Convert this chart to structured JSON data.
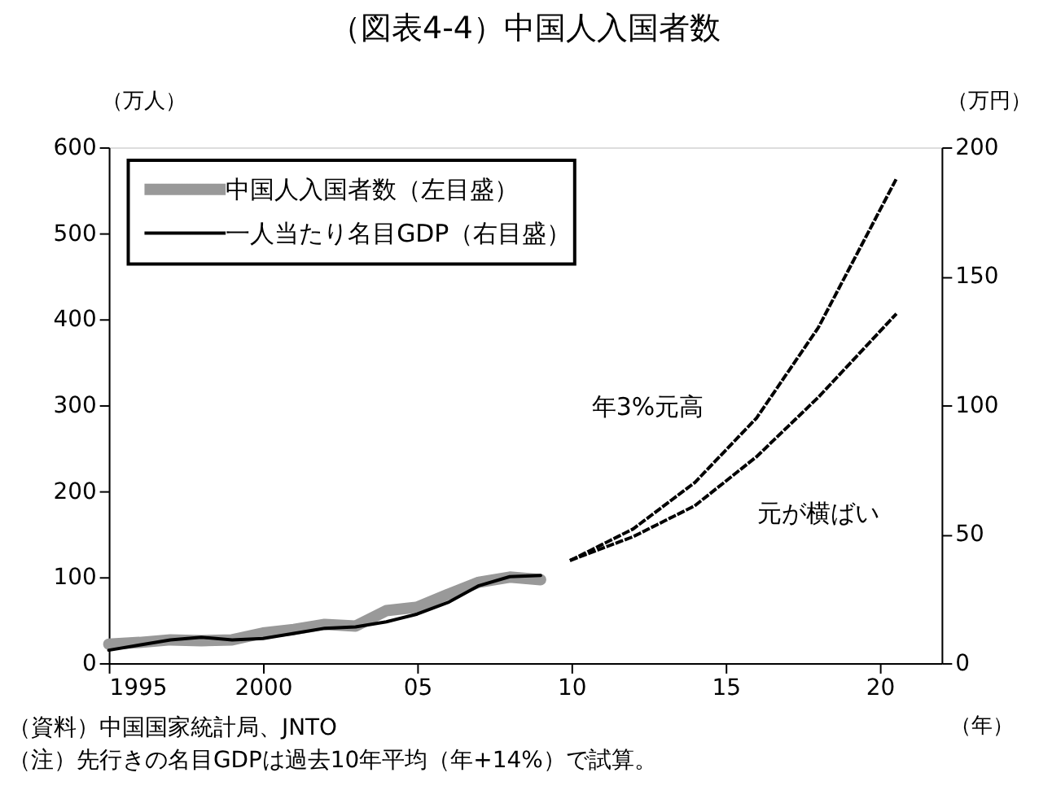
{
  "chart_data": {
    "type": "line",
    "title": "（図表4-4）中国人入国者数",
    "xlabel": "（年）",
    "ylabel": "（万人）",
    "y2label": "（万円）",
    "xlim": [
      1995,
      2022
    ],
    "xticks": [
      1995,
      2000,
      {
        "value": 2005,
        "label": "05"
      },
      {
        "value": 2010,
        "label": "10"
      },
      {
        "value": 2015,
        "label": "15"
      },
      {
        "value": 2020,
        "label": "20"
      }
    ],
    "ylim": [
      0,
      600
    ],
    "yticks": [
      0,
      100,
      200,
      300,
      400,
      500,
      600
    ],
    "y2lim": [
      0,
      200
    ],
    "y2ticks": [
      0,
      50,
      100,
      150,
      200
    ],
    "grid": false,
    "legend": "top left",
    "series": [
      {
        "name": "中国人入国者数（左目盛）",
        "color": "#999999",
        "axis": "y",
        "line_style": "solid",
        "x": [
          1995,
          1996,
          1997,
          1998,
          1999,
          2000,
          2001,
          2002,
          2003,
          2004,
          2005,
          2006,
          2007,
          2008,
          2009
        ],
        "values": [
          22,
          24,
          27,
          26,
          27,
          35,
          39,
          45,
          43,
          61,
          65,
          80,
          94,
          100,
          97
        ]
      },
      {
        "name": "一人当たり名目GDP（右目盛）",
        "color": "#000000",
        "axis": "y2",
        "line_style": "solid",
        "x": [
          1995,
          1996,
          1997,
          1998,
          1999,
          2000,
          2001,
          2002,
          2003,
          2004,
          2005,
          2006,
          2007,
          2008,
          2009
        ],
        "values": [
          5,
          7,
          9,
          10,
          9,
          9.5,
          11.5,
          13.5,
          14,
          16,
          19,
          23.5,
          30,
          33.5,
          34
        ]
      },
      {
        "color": "#000000",
        "axis": "y2",
        "line_style": "dotted",
        "x": [
          2010,
          2012,
          2014,
          2016,
          2018,
          2020.5
        ],
        "values": [
          40,
          52,
          70,
          95,
          130,
          187
        ]
      },
      {
        "color": "#000000",
        "axis": "y2",
        "line_style": "dotted",
        "x": [
          2010,
          2012,
          2014,
          2016,
          2018,
          2020.5
        ],
        "values": [
          40,
          49,
          61,
          80,
          103,
          135
        ]
      }
    ],
    "annotations": [
      "年3%元高",
      "元が横ばい",
      "（資料）中国国家統計局、JNTO",
      "（注）先行きの名目GDPは過去10年平均（年+14%）で試算。"
    ]
  }
}
